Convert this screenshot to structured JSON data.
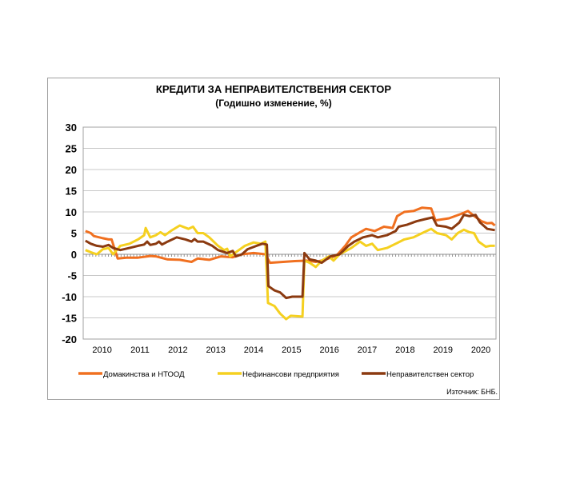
{
  "chart_data": {
    "type": "line",
    "title": "КРЕДИТИ ЗА НЕПРАВИТЕЛСТВЕНИЯ  СЕКТОР",
    "subtitle": "(Годишно  изменение, %)",
    "xlabel": "",
    "ylabel": "",
    "xlim": [
      2010.0,
      2020.9
    ],
    "ylim": [
      -20,
      30
    ],
    "yticks": [
      30,
      25,
      20,
      15,
      10,
      5,
      0,
      -5,
      -10,
      -15,
      -20
    ],
    "xtick_labels": [
      "2010",
      "2011",
      "2012",
      "2013",
      "2014",
      "2015",
      "2016",
      "2017",
      "2018",
      "2019",
      "2020"
    ],
    "grid": true,
    "legend_position": "bottom",
    "source": "Източник: БНБ.",
    "series": [
      {
        "name": "Домакинства  и НТООД",
        "color": "#f07020",
        "x": [
          2010.06,
          2010.2,
          2010.28,
          2010.52,
          2010.67,
          2010.75,
          2010.91,
          2011.14,
          2011.45,
          2011.77,
          2011.92,
          2012.23,
          2012.55,
          2012.86,
          2013.02,
          2013.33,
          2013.64,
          2013.95,
          2014.19,
          2014.5,
          2014.81,
          2014.93,
          2015.28,
          2015.59,
          2015.91,
          2016.14,
          2016.38,
          2016.69,
          2016.92,
          2017.08,
          2017.31,
          2017.47,
          2017.7,
          2017.94,
          2018.17,
          2018.29,
          2018.48,
          2018.72,
          2018.95,
          2019.19,
          2019.3,
          2019.66,
          2019.97,
          2020.16,
          2020.36,
          2020.52,
          2020.67,
          2020.79,
          2020.87
        ],
        "y": [
          5.5,
          5,
          4.3,
          3.8,
          3.5,
          3.5,
          -1,
          -0.8,
          -0.8,
          -0.4,
          -0.5,
          -1.2,
          -1.3,
          -1.8,
          -1,
          -1.3,
          -0.5,
          -0.7,
          0,
          0.3,
          0,
          -2,
          -1.8,
          -1.6,
          -1.5,
          -1.8,
          -1.3,
          -0.3,
          2,
          4,
          5.2,
          6,
          5.5,
          6.5,
          6.2,
          9,
          10,
          10.2,
          11,
          10.8,
          8,
          8.5,
          9.5,
          10.2,
          8.8,
          7.8,
          7.3,
          7.4,
          6.8
        ]
      },
      {
        "name": "Нефинансови предприятия",
        "color": "#f5d020",
        "x": [
          2010.06,
          2010.2,
          2010.36,
          2010.52,
          2010.67,
          2010.79,
          2010.98,
          2011.22,
          2011.45,
          2011.61,
          2011.65,
          2011.77,
          2011.92,
          2012.04,
          2012.16,
          2012.31,
          2012.55,
          2012.78,
          2012.9,
          2013.02,
          2013.17,
          2013.33,
          2013.56,
          2013.72,
          2013.8,
          2013.88,
          2014.03,
          2014.27,
          2014.5,
          2014.7,
          2014.81,
          2014.88,
          2015.05,
          2015.2,
          2015.36,
          2015.48,
          2015.79,
          2015.84,
          2015.98,
          2016.14,
          2016.3,
          2016.49,
          2016.61,
          2016.77,
          2017.08,
          2017.31,
          2017.47,
          2017.63,
          2017.78,
          2018.02,
          2018.25,
          2018.48,
          2018.72,
          2018.95,
          2019.19,
          2019.34,
          2019.58,
          2019.73,
          2019.89,
          2020.05,
          2020.2,
          2020.32,
          2020.44,
          2020.63,
          2020.75,
          2020.87
        ],
        "y": [
          1,
          0.5,
          0,
          1.2,
          1.5,
          0,
          2,
          2.5,
          3.5,
          4.5,
          6.2,
          4,
          4.5,
          5.2,
          4.5,
          5.5,
          6.8,
          6,
          6.5,
          5,
          5,
          4,
          2,
          1,
          1.3,
          -0.5,
          0.5,
          2,
          2.8,
          2.5,
          3,
          -11.5,
          -12.2,
          -14,
          -15.3,
          -14.5,
          -14.7,
          -1.5,
          -2,
          -3,
          -1.5,
          -0.5,
          -1.5,
          0,
          1.5,
          3,
          2,
          2.5,
          1,
          1.5,
          2.5,
          3.5,
          4,
          5,
          6,
          5,
          4.5,
          3.5,
          5,
          5.8,
          5.2,
          5,
          3,
          1.8,
          2,
          2
        ]
      },
      {
        "name": "Неправителствен  сектор",
        "color": "#8b3a10",
        "x": [
          2010.06,
          2010.2,
          2010.36,
          2010.52,
          2010.67,
          2010.79,
          2010.98,
          2011.22,
          2011.45,
          2011.61,
          2011.69,
          2011.77,
          2011.92,
          2012.0,
          2012.08,
          2012.23,
          2012.47,
          2012.7,
          2012.86,
          2012.94,
          2013.02,
          2013.17,
          2013.41,
          2013.56,
          2013.8,
          2013.95,
          2014.03,
          2014.19,
          2014.34,
          2014.58,
          2014.73,
          2014.85,
          2014.89,
          2015.05,
          2015.2,
          2015.36,
          2015.52,
          2015.79,
          2015.84,
          2015.98,
          2016.14,
          2016.3,
          2016.53,
          2016.77,
          2017.0,
          2017.16,
          2017.39,
          2017.63,
          2017.78,
          2018.02,
          2018.25,
          2018.33,
          2018.56,
          2018.8,
          2019.03,
          2019.23,
          2019.34,
          2019.58,
          2019.73,
          2019.93,
          2020.05,
          2020.2,
          2020.36,
          2020.48,
          2020.67,
          2020.87
        ],
        "y": [
          3.2,
          2.5,
          2,
          1.8,
          2.2,
          1.5,
          1,
          1.5,
          2,
          2.3,
          3,
          2.2,
          2.5,
          3,
          2.3,
          3,
          4,
          3.5,
          3,
          3.6,
          3,
          3,
          2,
          1,
          0.3,
          0.8,
          -0.5,
          0,
          1.2,
          2,
          2.5,
          2.3,
          -7.5,
          -8.5,
          -9,
          -10.3,
          -10,
          -10,
          0.3,
          -1.2,
          -1.5,
          -2,
          -0.5,
          0,
          2,
          3,
          4,
          4.5,
          4,
          4.5,
          5.5,
          6.5,
          7,
          7.8,
          8.3,
          8.7,
          6.8,
          6.5,
          6,
          7.5,
          9.3,
          9,
          9.3,
          7.5,
          6,
          5.7
        ]
      }
    ]
  }
}
